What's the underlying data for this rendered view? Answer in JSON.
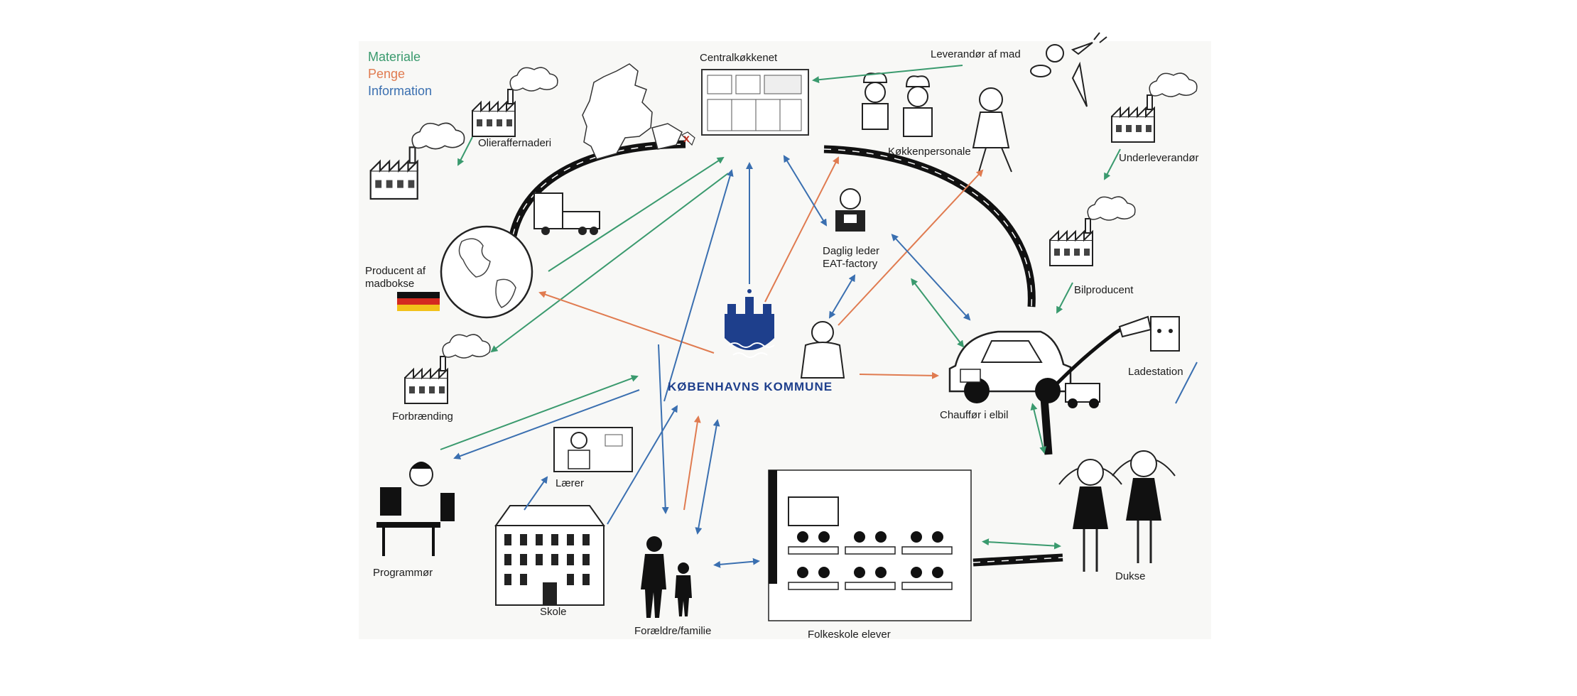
{
  "legend": {
    "material": {
      "label": "Materiale",
      "color": "#3a9a6e"
    },
    "money": {
      "label": "Penge",
      "color": "#e07b50"
    },
    "information": {
      "label": "Information",
      "color": "#3a6fb0"
    }
  },
  "center": {
    "label": "KØBENHAVNS KOMMUNE",
    "color": "#1e3f8c"
  },
  "nodes": {
    "centralkokken": "Centralkøkkenet",
    "leverandor": "Leverandør af mad",
    "kokkenpersonale": "Køkkenpersonale",
    "olieraffinaderi": "Olieraffernaderi",
    "underleverandor": "Underleverandør",
    "producent": "Producent af\nmadbokse",
    "daglig_leder": "Daglig leder\nEAT-factory",
    "bilproducent": "Bilproducent",
    "ladestation": "Ladestation",
    "forbraending": "Forbrænding",
    "chauffor": "Chauffør i elbil",
    "laerer": "Lærer",
    "programmor": "Programmør",
    "skole": "Skole",
    "foraeldre": "Forældre/familie",
    "folkeskole": "Folkeskole elever",
    "dukse": "Dukse"
  },
  "icons": {
    "kitchen": "kitchen-illustration",
    "chefs": "chefs-illustration",
    "waiter": "supplier-waiter-illustration",
    "vegetables": "vegetables-icon",
    "denmark": "denmark-map-icon",
    "globe": "globe-icon",
    "truck": "truck-icon",
    "flag": "german-flag-icon",
    "factory": "factory-icon",
    "manager": "manager-illustration",
    "car": "electric-car-icon",
    "plug": "charging-plug-icon",
    "teacher": "teacher-illustration",
    "programmer": "programmer-illustration",
    "school": "school-building-icon",
    "family": "parent-child-silhouette",
    "classroom": "classroom-illustration",
    "girls": "two-girls-illustration",
    "person": "seated-person-illustration",
    "logo": "copenhagen-coat-of-arms-icon"
  }
}
